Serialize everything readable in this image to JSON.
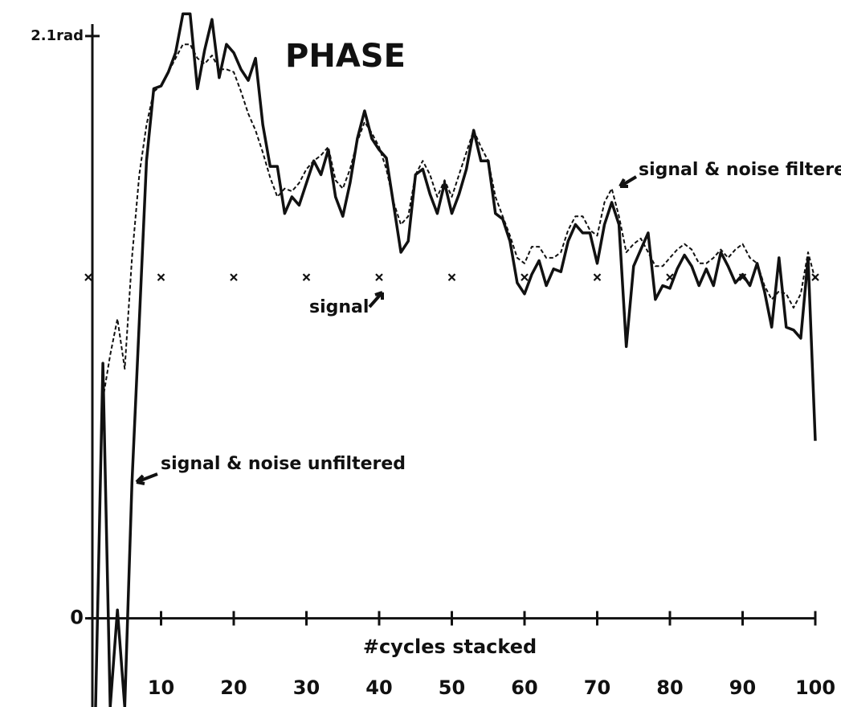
{
  "chart_data": {
    "type": "line",
    "title": "PHASE",
    "xlabel": "#cycles stacked",
    "xlim": [
      0,
      100
    ],
    "ylim": [
      -0.32,
      2.23
    ],
    "xticks": [
      10,
      20,
      30,
      40,
      50,
      60,
      70,
      80,
      90,
      100
    ],
    "yticks": [
      0,
      {
        "value": 2.1,
        "label": "2.1rad"
      }
    ],
    "series": [
      {
        "name": "signal & noise unfiltered",
        "color": "#111111",
        "style": "solid",
        "x": [
          1,
          2,
          3,
          4,
          5,
          6,
          7,
          8,
          9,
          10,
          11,
          12,
          13,
          14,
          15,
          16,
          17,
          18,
          19,
          20,
          21,
          22,
          23,
          24,
          25,
          26,
          27,
          28,
          29,
          30,
          31,
          32,
          33,
          34,
          35,
          36,
          37,
          38,
          39,
          40,
          41,
          42,
          43,
          44,
          45,
          46,
          47,
          48,
          49,
          50,
          51,
          52,
          53,
          54,
          55,
          56,
          57,
          58,
          59,
          60,
          61,
          62,
          63,
          64,
          65,
          66,
          67,
          68,
          69,
          70,
          71,
          72,
          73,
          74,
          75,
          76,
          77,
          78,
          79,
          80,
          81,
          82,
          83,
          84,
          85,
          86,
          87,
          88,
          89,
          90,
          91,
          92,
          93,
          94,
          95,
          96,
          97,
          98,
          99,
          100
        ],
        "values": [
          -0.32,
          0.92,
          -0.32,
          0.03,
          -0.32,
          0.49,
          1.07,
          1.65,
          1.91,
          1.92,
          1.97,
          2.04,
          2.18,
          2.18,
          1.91,
          2.05,
          2.16,
          1.95,
          2.07,
          2.04,
          1.98,
          1.94,
          2.02,
          1.78,
          1.63,
          1.63,
          1.46,
          1.52,
          1.49,
          1.57,
          1.65,
          1.6,
          1.69,
          1.52,
          1.45,
          1.57,
          1.73,
          1.83,
          1.73,
          1.69,
          1.66,
          1.49,
          1.32,
          1.36,
          1.6,
          1.62,
          1.53,
          1.46,
          1.57,
          1.46,
          1.53,
          1.62,
          1.76,
          1.65,
          1.65,
          1.46,
          1.44,
          1.36,
          1.21,
          1.17,
          1.24,
          1.29,
          1.2,
          1.26,
          1.25,
          1.36,
          1.42,
          1.39,
          1.39,
          1.28,
          1.42,
          1.5,
          1.42,
          0.98,
          1.27,
          1.33,
          1.39,
          1.15,
          1.2,
          1.19,
          1.26,
          1.31,
          1.27,
          1.2,
          1.26,
          1.2,
          1.32,
          1.27,
          1.21,
          1.24,
          1.2,
          1.28,
          1.18,
          1.05,
          1.3,
          1.05,
          1.04,
          1.01,
          1.3,
          0.64
        ]
      },
      {
        "name": "signal & noise filtered",
        "color": "#111111",
        "style": "dashed",
        "x": [
          2,
          3,
          4,
          5,
          6,
          7,
          8,
          9,
          10,
          11,
          12,
          13,
          14,
          15,
          16,
          17,
          18,
          19,
          20,
          21,
          22,
          23,
          24,
          25,
          26,
          27,
          28,
          29,
          30,
          31,
          32,
          33,
          34,
          35,
          36,
          37,
          38,
          39,
          40,
          41,
          42,
          43,
          44,
          45,
          46,
          47,
          48,
          49,
          50,
          51,
          52,
          53,
          54,
          55,
          56,
          57,
          58,
          59,
          60,
          61,
          62,
          63,
          64,
          65,
          66,
          67,
          68,
          69,
          70,
          71,
          72,
          73,
          74,
          75,
          76,
          77,
          78,
          79,
          80,
          81,
          82,
          83,
          84,
          85,
          86,
          87,
          88,
          89,
          90,
          91,
          92,
          93,
          94,
          95,
          96,
          97,
          98,
          99,
          100
        ],
        "values": [
          0.79,
          0.95,
          1.08,
          0.9,
          1.3,
          1.6,
          1.78,
          1.9,
          1.92,
          1.97,
          2.02,
          2.07,
          2.07,
          2.02,
          2.0,
          2.03,
          1.98,
          1.98,
          1.97,
          1.9,
          1.82,
          1.76,
          1.68,
          1.59,
          1.52,
          1.55,
          1.54,
          1.57,
          1.62,
          1.65,
          1.67,
          1.7,
          1.58,
          1.55,
          1.62,
          1.72,
          1.79,
          1.75,
          1.7,
          1.62,
          1.5,
          1.42,
          1.45,
          1.6,
          1.65,
          1.6,
          1.52,
          1.58,
          1.52,
          1.6,
          1.68,
          1.76,
          1.7,
          1.65,
          1.52,
          1.45,
          1.38,
          1.3,
          1.28,
          1.34,
          1.34,
          1.3,
          1.3,
          1.32,
          1.4,
          1.45,
          1.45,
          1.4,
          1.38,
          1.5,
          1.55,
          1.45,
          1.32,
          1.35,
          1.37,
          1.32,
          1.27,
          1.27,
          1.3,
          1.33,
          1.35,
          1.33,
          1.28,
          1.28,
          1.3,
          1.33,
          1.3,
          1.33,
          1.35,
          1.3,
          1.28,
          1.2,
          1.15,
          1.18,
          1.17,
          1.12,
          1.17,
          1.32,
          1.22
        ]
      },
      {
        "name": "signal",
        "color": "#111111",
        "style": "marker",
        "x": [
          0,
          10,
          20,
          30,
          40,
          50,
          60,
          70,
          80,
          90,
          100
        ],
        "values": [
          1.23,
          1.23,
          1.23,
          1.23,
          1.23,
          1.23,
          1.23,
          1.23,
          1.23,
          1.23,
          1.23
        ]
      }
    ]
  }
}
